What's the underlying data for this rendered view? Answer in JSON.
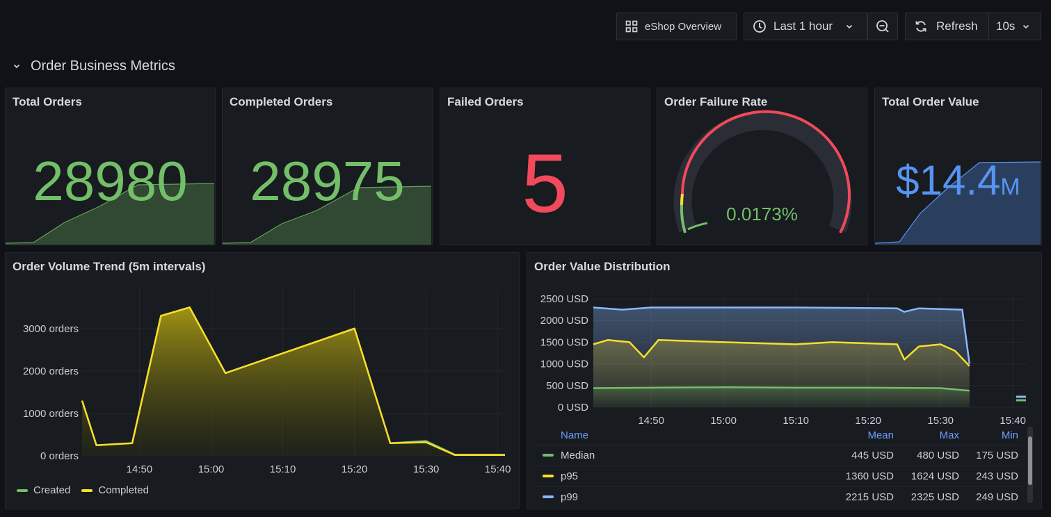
{
  "toolbar": {
    "dashboard_label": "eShop Overview",
    "time_range": "Last 1 hour",
    "refresh_label": "Refresh",
    "refresh_interval": "10s"
  },
  "row": {
    "title": "Order Business Metrics"
  },
  "stats": [
    {
      "title": "Total Orders",
      "value": "28980",
      "color": "#73bf69"
    },
    {
      "title": "Completed Orders",
      "value": "28975",
      "color": "#73bf69"
    },
    {
      "title": "Failed Orders",
      "value": "5",
      "color": "#f2495c"
    },
    {
      "title": "Order Failure Rate",
      "value": "0.0173%",
      "color": "#73bf69"
    },
    {
      "title": "Total Order Value",
      "value": "$14.4",
      "unit": "M",
      "color": "#5794f2"
    }
  ],
  "chart_data": [
    {
      "type": "area",
      "title": "Order Volume Trend (5m intervals)",
      "ylabel": "",
      "y_ticks": [
        "0 orders",
        "1000 orders",
        "2000 orders",
        "3000 orders"
      ],
      "ylim": [
        0,
        3800
      ],
      "x_ticks": [
        "14:50",
        "15:00",
        "15:10",
        "15:20",
        "15:30",
        "15:40"
      ],
      "legend_placement": "bottom-left",
      "series": [
        {
          "name": "Created",
          "color": "#73bf69",
          "points": [
            [
              "14:42",
              1300
            ],
            [
              "14:44",
              250
            ],
            [
              "14:49",
              300
            ],
            [
              "14:53",
              3300
            ],
            [
              "14:57",
              3500
            ],
            [
              "15:02",
              1950
            ],
            [
              "15:20",
              3000
            ],
            [
              "15:25",
              300
            ],
            [
              "15:30",
              350
            ],
            [
              "15:34",
              30
            ],
            [
              "15:41",
              30
            ]
          ]
        },
        {
          "name": "Completed",
          "color": "#fade2a",
          "points": [
            [
              "14:42",
              1300
            ],
            [
              "14:44",
              250
            ],
            [
              "14:49",
              300
            ],
            [
              "14:53",
              3300
            ],
            [
              "14:57",
              3500
            ],
            [
              "15:02",
              1950
            ],
            [
              "15:20",
              3000
            ],
            [
              "15:25",
              300
            ],
            [
              "15:30",
              320
            ],
            [
              "15:34",
              20
            ],
            [
              "15:41",
              20
            ]
          ]
        }
      ]
    },
    {
      "type": "area",
      "title": "Order Value Distribution",
      "y_ticks": [
        "0 USD",
        "500 USD",
        "1000 USD",
        "1500 USD",
        "2000 USD",
        "2500 USD"
      ],
      "ylim": [
        0,
        2500
      ],
      "x_ticks": [
        "14:50",
        "15:00",
        "15:10",
        "15:20",
        "15:30",
        "15:40"
      ],
      "series": [
        {
          "name": "Median",
          "color": "#73bf69",
          "mean": "445 USD",
          "max": "480 USD",
          "min": "175 USD",
          "points": [
            [
              "14:42",
              440
            ],
            [
              "14:50",
              450
            ],
            [
              "15:00",
              460
            ],
            [
              "15:10",
              450
            ],
            [
              "15:20",
              450
            ],
            [
              "15:30",
              440
            ],
            [
              "15:34",
              380
            ]
          ]
        },
        {
          "name": "p95",
          "color": "#fade2a",
          "mean": "1360 USD",
          "max": "1624 USD",
          "min": "243 USD",
          "points": [
            [
              "14:42",
              1450
            ],
            [
              "14:44",
              1550
            ],
            [
              "14:47",
              1500
            ],
            [
              "14:49",
              1150
            ],
            [
              "14:51",
              1550
            ],
            [
              "15:00",
              1500
            ],
            [
              "15:10",
              1450
            ],
            [
              "15:15",
              1500
            ],
            [
              "15:24",
              1450
            ],
            [
              "15:25",
              1100
            ],
            [
              "15:27",
              1400
            ],
            [
              "15:30",
              1450
            ],
            [
              "15:32",
              1300
            ],
            [
              "15:34",
              950
            ]
          ]
        },
        {
          "name": "p99",
          "color": "#8ab8ff",
          "mean": "2215 USD",
          "max": "2325 USD",
          "min": "249 USD",
          "points": [
            [
              "14:42",
              2300
            ],
            [
              "14:46",
              2250
            ],
            [
              "14:50",
              2300
            ],
            [
              "15:10",
              2300
            ],
            [
              "15:24",
              2280
            ],
            [
              "15:25",
              2200
            ],
            [
              "15:27",
              2280
            ],
            [
              "15:33",
              2250
            ],
            [
              "15:34",
              1000
            ]
          ]
        }
      ],
      "table_headers": {
        "name": "Name",
        "mean": "Mean",
        "max": "Max",
        "min": "Min"
      }
    }
  ]
}
